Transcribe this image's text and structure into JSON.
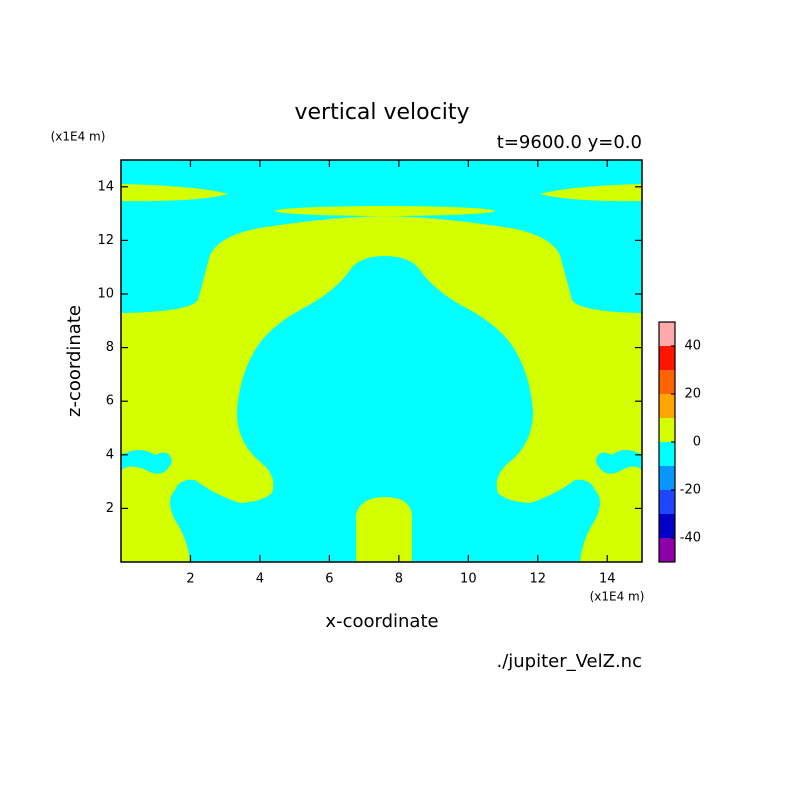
{
  "chart_data": {
    "type": "contour",
    "title": "vertical velocity",
    "subtitle": "t=9600.0 y=0.0",
    "x_label": "x-coordinate",
    "y_label": "z-coordinate",
    "x_unit": "(x1E4 m)",
    "y_unit": "(x1E4 m)",
    "source": "./jupiter_VelZ.nc",
    "xlim": [
      0,
      15
    ],
    "xticks": [
      2,
      4,
      6,
      8,
      10,
      12,
      14
    ],
    "ylim": [
      0,
      15
    ],
    "yticks": [
      2,
      4,
      6,
      8,
      10,
      12,
      14
    ],
    "colorbar": {
      "levels": [
        -50,
        -40,
        -30,
        -20,
        -10,
        0,
        10,
        20,
        30,
        40,
        50
      ],
      "colors": [
        "#8c00a8",
        "#0000c8",
        "#1e46ff",
        "#0a96ff",
        "#00ffff",
        "#d4ff00",
        "#ffa500",
        "#ff6400",
        "#ff1400",
        "#ffaaaa"
      ],
      "ticks": [
        -40,
        -20,
        0,
        20,
        40
      ]
    }
  }
}
